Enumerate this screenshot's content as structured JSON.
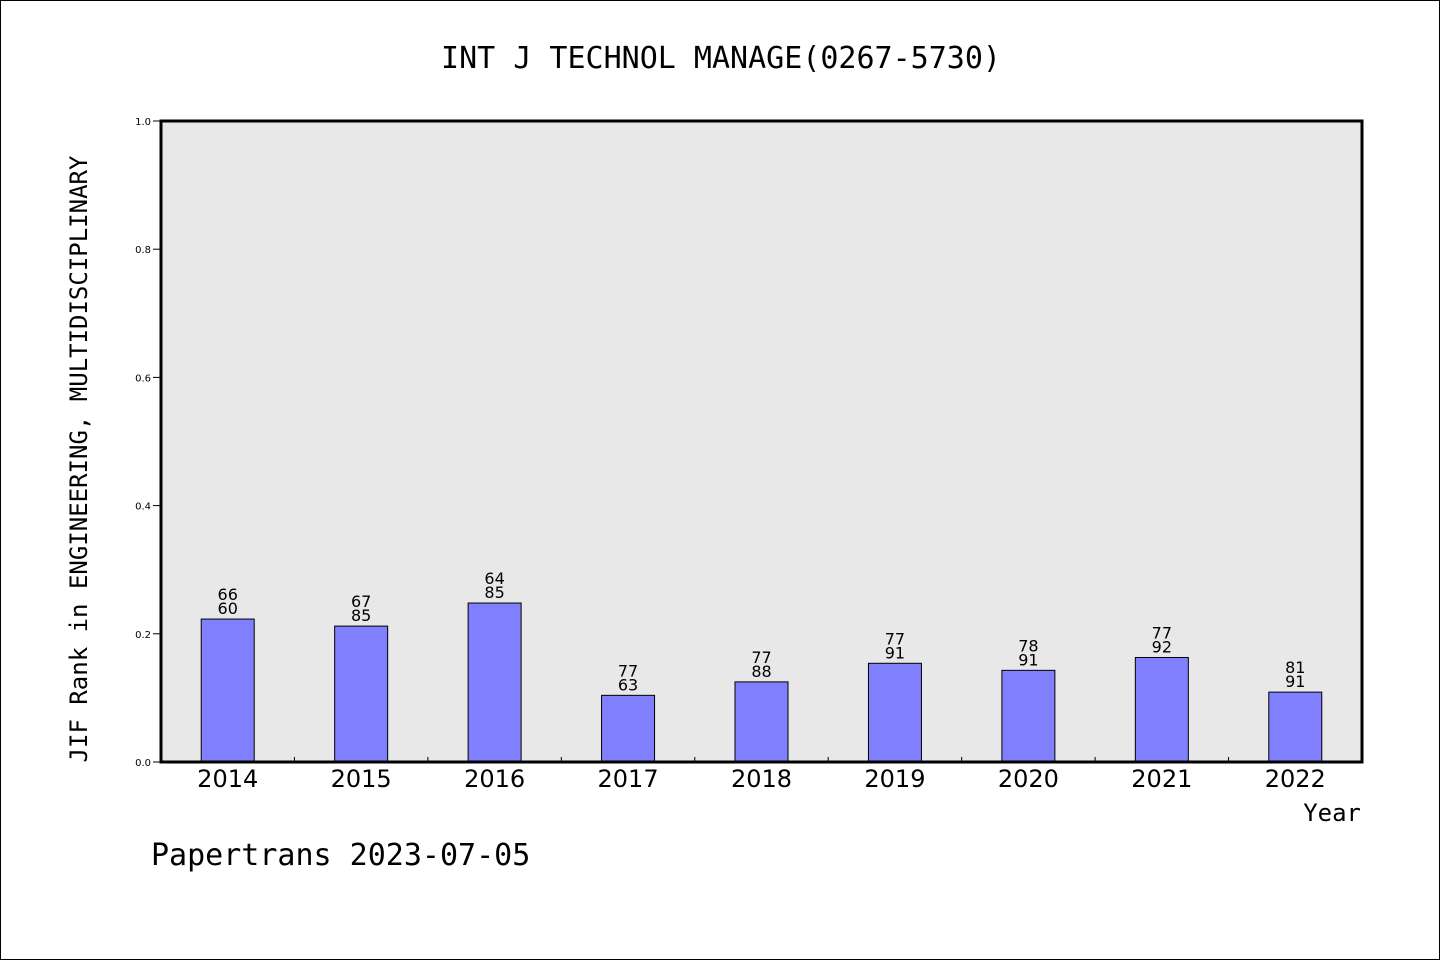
{
  "chart_data": {
    "type": "bar",
    "title": "INT J TECHNOL MANAGE(0267-5730)",
    "xlabel": "Year",
    "ylabel": "JIF Rank in ENGINEERING, MULTIDISCIPLINARY",
    "ylim": [
      0,
      1.0
    ],
    "yticks": [
      "0.0",
      "0.2",
      "0.4",
      "0.6",
      "0.8",
      "1.0"
    ],
    "categories": [
      "2014",
      "2015",
      "2016",
      "2017",
      "2018",
      "2019",
      "2020",
      "2021",
      "2022"
    ],
    "series": [
      {
        "values": [
          0.223,
          0.212,
          0.248,
          0.104,
          0.125,
          0.154,
          0.143,
          0.163,
          0.109
        ],
        "rank_labels": [
          [
            "66",
            "60"
          ],
          [
            "67",
            "85"
          ],
          [
            "64",
            "85"
          ],
          [
            "77",
            "63"
          ],
          [
            "77",
            "88"
          ],
          [
            "77",
            "91"
          ],
          [
            "78",
            "91"
          ],
          [
            "77",
            "92"
          ],
          [
            "81",
            "91"
          ]
        ]
      }
    ],
    "grid": false,
    "colors": {
      "bar": "#8080ff",
      "plot_bg": "#e8e8e8"
    }
  },
  "footer": "Papertrans 2023-07-05"
}
